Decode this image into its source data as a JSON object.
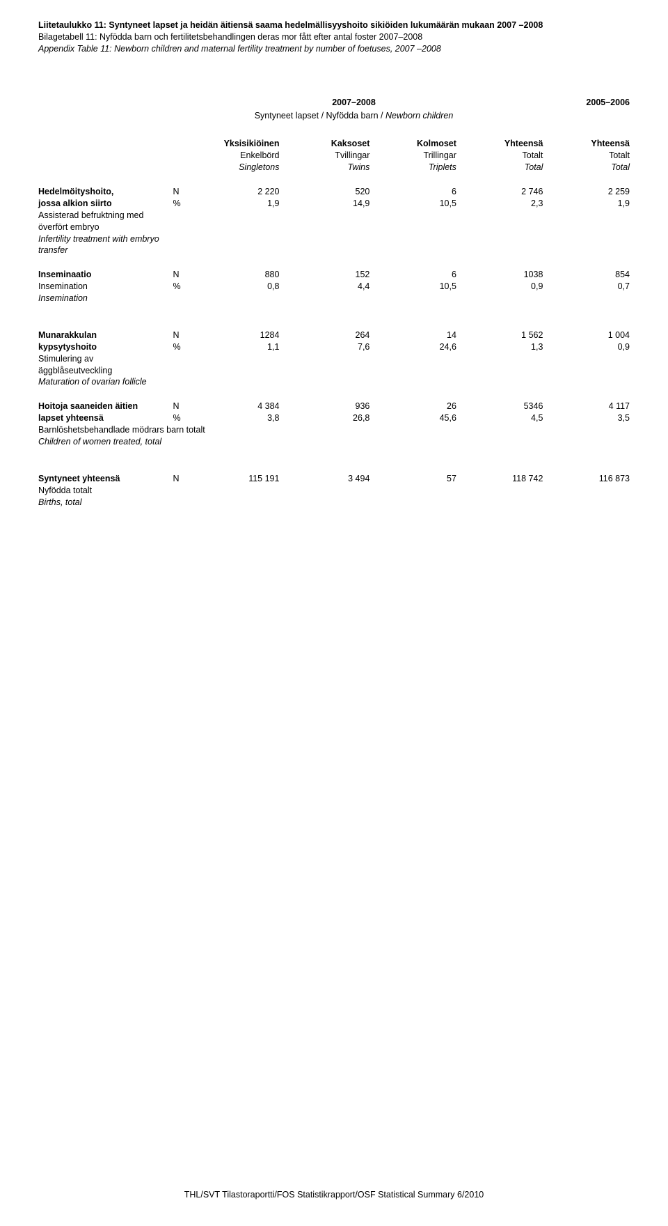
{
  "titles": {
    "fi": "Liitetaulukko 11: Syntyneet lapset ja heidän äitiensä saama hedelmällisyyshoito sikiöiden lukumäärän mukaan 2007 –2008",
    "sv": "Bilagetabell 11: Nyfödda barn och fertilitetsbehandlingen deras mor fått efter antal foster 2007–2008",
    "en": "Appendix Table 11: Newborn children and maternal fertility treatment by number of foetuses, 2007 –2008"
  },
  "periods": {
    "main": "2007–2008",
    "right": "2005–2006"
  },
  "subhead": "Syntyneet lapset / Nyfödda barn / Newborn children",
  "columns": {
    "r1": {
      "c1": "Yksisikiöinen",
      "c2": "Kaksoset",
      "c3": "Kolmoset",
      "c4": "Yhteensä",
      "c5": "Yhteensä"
    },
    "r2": {
      "c1": "Enkelbörd",
      "c2": "Tvillingar",
      "c3": "Trillingar",
      "c4": "Totalt",
      "c5": "Totalt"
    },
    "r3": {
      "c1": "Singletons",
      "c2": "Twins",
      "c3": "Triplets",
      "c4": "Total",
      "c5": "Total"
    }
  },
  "rows": {
    "ivf": {
      "l1": "Hedelmöityshoito,",
      "l2": "jossa alkion siirto",
      "l3": "Assisterad befruktning med",
      "l4": "överfört embryo",
      "l5": "Infertility treatment with embryo",
      "l6": "transfer",
      "n": {
        "u": "N",
        "c1": "2 220",
        "c2": "520",
        "c3": "6",
        "c4": "2 746",
        "c5": "2 259"
      },
      "p": {
        "u": "%",
        "c1": "1,9",
        "c2": "14,9",
        "c3": "10,5",
        "c4": "2,3",
        "c5": "1,9"
      }
    },
    "ins": {
      "l1": "Inseminaatio",
      "l2": "Insemination",
      "l3": "Insemination",
      "n": {
        "u": "N",
        "c1": "880",
        "c2": "152",
        "c3": "6",
        "c4": "1038",
        "c5": "854"
      },
      "p": {
        "u": "%",
        "c1": "0,8",
        "c2": "4,4",
        "c3": "10,5",
        "c4": "0,9",
        "c5": "0,7"
      }
    },
    "mat": {
      "l1": "Munarakkulan",
      "l2": "kypsytyshoito",
      "l3": "Stimulering av",
      "l4": "äggblåseutveckling",
      "l5": "Maturation of ovarian follicle",
      "n": {
        "u": "N",
        "c1": "1284",
        "c2": "264",
        "c3": "14",
        "c4": "1 562",
        "c5": "1 004"
      },
      "p": {
        "u": "%",
        "c1": "1,1",
        "c2": "7,6",
        "c3": "24,6",
        "c4": "1,3",
        "c5": "0,9"
      }
    },
    "tot": {
      "l1": "Hoitoja saaneiden äitien",
      "l2": "lapset yhteensä",
      "l3": "Barnlöshetsbehandlade mödrars barn totalt",
      "l4": "Children of women treated, total",
      "n": {
        "u": "N",
        "c1": "4 384",
        "c2": "936",
        "c3": "26",
        "c4": "5346",
        "c5": "4 117"
      },
      "p": {
        "u": "%",
        "c1": "3,8",
        "c2": "26,8",
        "c3": "45,6",
        "c4": "4,5",
        "c5": "3,5"
      }
    },
    "all": {
      "l1": "Syntyneet yhteensä",
      "l2": "Nyfödda totalt",
      "l3": "Births, total",
      "n": {
        "u": "N",
        "c1": "115 191",
        "c2": "3 494",
        "c3": "57",
        "c4": "118 742",
        "c5": "116 873"
      }
    }
  },
  "footer": "THL/SVT Tilastoraportti/FOS Statistikrapport/OSF Statistical Summary 6/2010"
}
